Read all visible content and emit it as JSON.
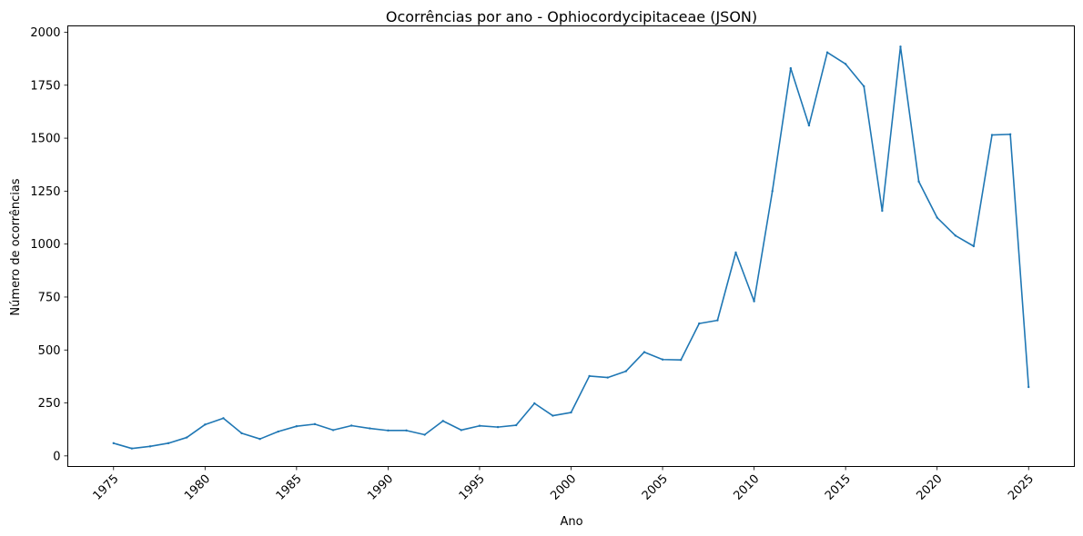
{
  "chart_data": {
    "type": "line",
    "title": "Ocorrências por ano - Ophiocordycipitaceae (JSON)",
    "xlabel": "Ano",
    "ylabel": "Número de ocorrências",
    "xlim": [
      1972.5,
      2027.5
    ],
    "ylim": [
      -50,
      2030
    ],
    "xticks": [
      1975,
      1980,
      1985,
      1990,
      1995,
      2000,
      2005,
      2010,
      2015,
      2020,
      2025
    ],
    "yticks": [
      0,
      250,
      500,
      750,
      1000,
      1250,
      1500,
      1750,
      2000
    ],
    "grid": false,
    "color": "#1f77b4",
    "series": [
      {
        "x": [
          1975,
          1976,
          1977,
          1978,
          1979,
          1980,
          1981,
          1982,
          1983,
          1984,
          1985,
          1986,
          1987,
          1988,
          1989,
          1990,
          1991,
          1992,
          1993,
          1994,
          1995,
          1996,
          1997,
          1998,
          1999,
          2000,
          2001,
          2002,
          2003,
          2004,
          2005,
          2006,
          2007,
          2008,
          2009,
          2010,
          2011,
          2012,
          2013,
          2014,
          2015,
          2016,
          2017,
          2018,
          2019,
          2020,
          2021,
          2022,
          2023,
          2024,
          2025
        ],
        "values": [
          60,
          35,
          45,
          60,
          87,
          148,
          178,
          107,
          80,
          115,
          140,
          150,
          122,
          143,
          130,
          120,
          120,
          100,
          165,
          122,
          142,
          136,
          145,
          248,
          190,
          205,
          377,
          370,
          400,
          490,
          455,
          453,
          625,
          640,
          960,
          730,
          1250,
          1830,
          1560,
          1905,
          1850,
          1745,
          1157,
          1932,
          1295,
          1125,
          1040,
          990,
          1515,
          1518,
          325
        ]
      }
    ]
  }
}
